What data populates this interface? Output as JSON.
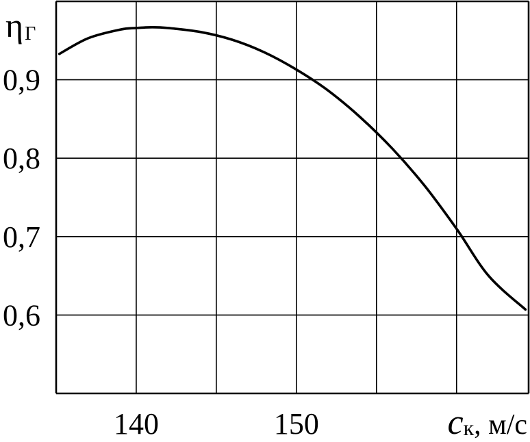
{
  "chart_data": {
    "type": "line",
    "title": "",
    "xlabel_symbol": "c",
    "xlabel_subscript": "к",
    "xlabel_unit": ", м/с",
    "ylabel_symbol": "η",
    "ylabel_subscript": "Г",
    "xlim": [
      135,
      164.5
    ],
    "ylim": [
      0.5,
      1.0
    ],
    "x_ticks": [
      140,
      150
    ],
    "x_tick_labels": [
      "140",
      "150"
    ],
    "x_grid": [
      140,
      145,
      150,
      155,
      160
    ],
    "y_ticks": [
      0.6,
      0.7,
      0.8,
      0.9
    ],
    "y_tick_labels": [
      "0,6",
      "0,7",
      "0,8",
      "0,9"
    ],
    "grid": true,
    "series": [
      {
        "x": [
          135.2,
          137,
          139,
          140,
          141,
          142,
          144,
          146,
          148,
          150,
          152,
          154,
          156,
          158,
          160,
          162,
          164.3
        ],
        "y": [
          0.933,
          0.953,
          0.964,
          0.966,
          0.967,
          0.966,
          0.961,
          0.951,
          0.935,
          0.913,
          0.886,
          0.852,
          0.812,
          0.765,
          0.71,
          0.65,
          0.607
        ]
      }
    ]
  }
}
